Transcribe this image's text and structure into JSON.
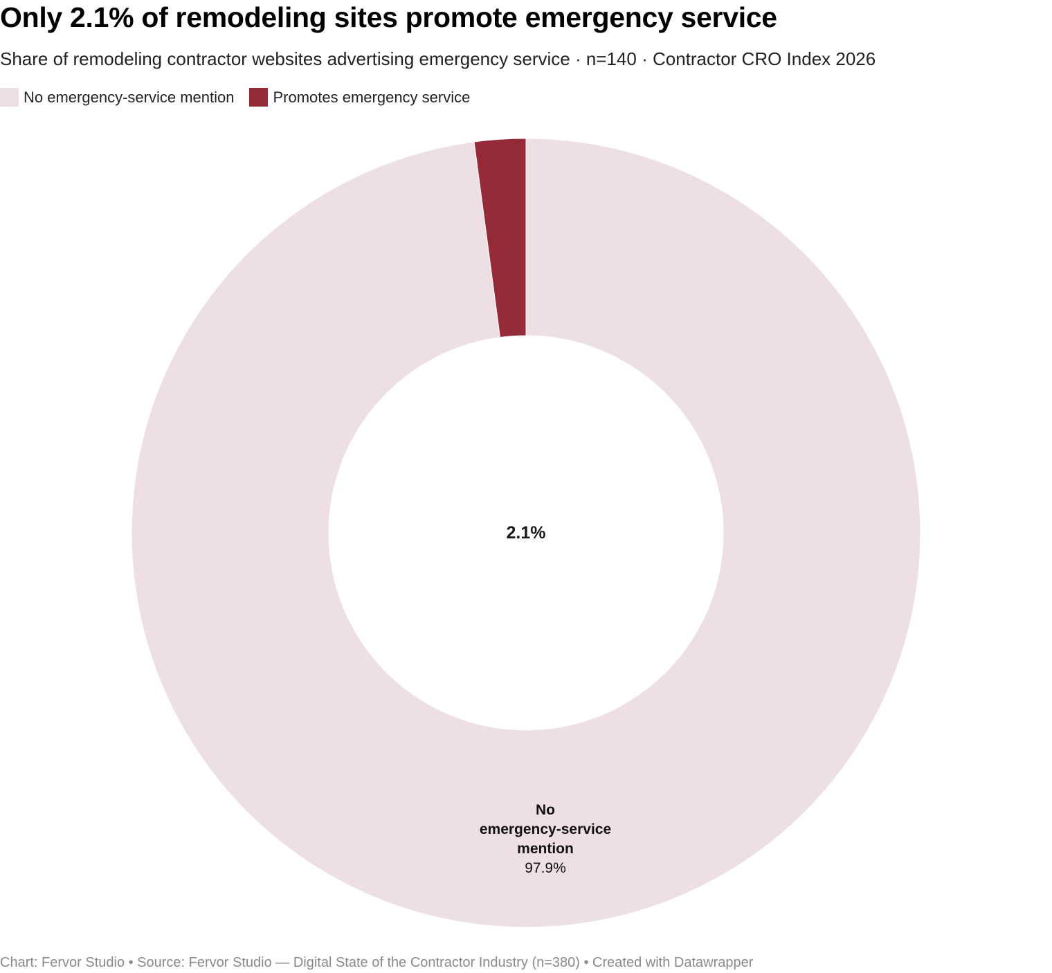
{
  "chart_data": {
    "type": "pie",
    "title": "Only 2.1% of remodeling sites promote emergency service",
    "subtitle": "Share of remodeling contractor websites advertising emergency service · n=140 · Contractor CRO Index 2026",
    "slices": [
      {
        "name": "No emergency-service mention",
        "value": 97.9,
        "color": "#eedfe4",
        "label_lines": [
          "No",
          "emergency-service",
          "mention"
        ],
        "value_label": "97.9%"
      },
      {
        "name": "Promotes emergency service",
        "value": 2.1,
        "color": "#952a39"
      }
    ],
    "center_label": "2.1%",
    "legend_position": "top-left",
    "donut": true
  },
  "footer": "Chart: Fervor Studio • Source: Fervor Studio — Digital State of the Contractor Industry (n=380) • Created with Datawrapper"
}
